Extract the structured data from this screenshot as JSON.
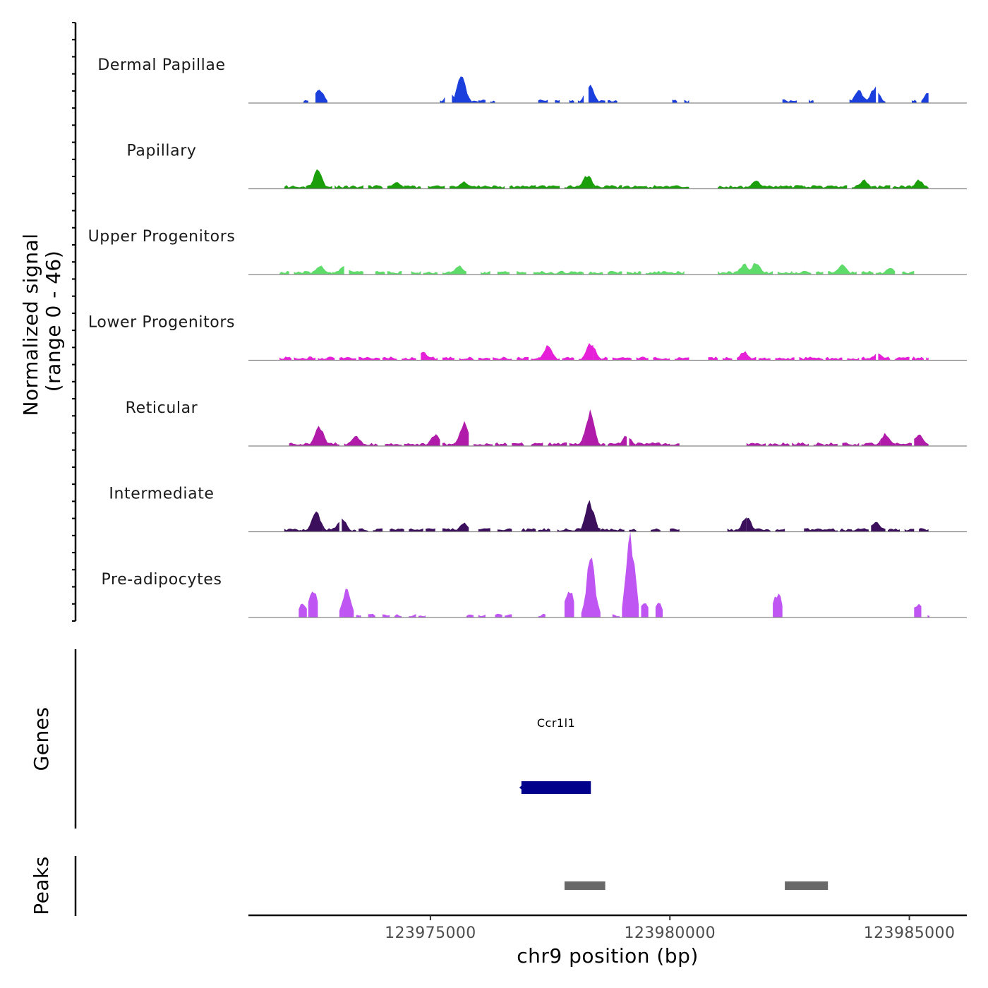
{
  "chart_data": {
    "type": "area",
    "chromosome": "chr9",
    "x_range": [
      123971200,
      123986200
    ],
    "y_title_line1": "Normalized signal",
    "y_title_line2": "(range 0 - 46)",
    "y_range": [
      0,
      46
    ],
    "xlabel": "chr9 position (bp)",
    "x_ticks": [
      123975000,
      123980000,
      123985000
    ],
    "x_tick_labels": [
      "123975000",
      "123980000",
      "123985000"
    ],
    "tracks": [
      {
        "name": "Dermal Papillae",
        "color": "#1a3fdc",
        "segments": [
          [
            123972350,
            123972450
          ],
          [
            123972600,
            123972850
          ],
          [
            123975200,
            123975300
          ],
          [
            123975450,
            123976000
          ],
          [
            123976000,
            123976150
          ],
          [
            123976250,
            123976350
          ],
          [
            123977250,
            123977450
          ],
          [
            123977600,
            123977700
          ],
          [
            123977900,
            123978000
          ],
          [
            123978080,
            123978200
          ],
          [
            123978300,
            123978650
          ],
          [
            123978700,
            123978900
          ],
          [
            123980050,
            123980150
          ],
          [
            123980300,
            123980400
          ],
          [
            123982350,
            123982650
          ],
          [
            123982900,
            123983000
          ],
          [
            123983750,
            123984300
          ],
          [
            123984350,
            123984500
          ],
          [
            123985050,
            123985150
          ],
          [
            123985250,
            123985400
          ]
        ],
        "peaks": [
          [
            123972680,
            8
          ],
          [
            123975650,
            16
          ],
          [
            123975400,
            6
          ],
          [
            123978320,
            11
          ],
          [
            123984280,
            9
          ],
          [
            123983950,
            7
          ],
          [
            123985420,
            7
          ]
        ]
      },
      {
        "name": "Papillary",
        "color": "#1a9f0a",
        "segments": [
          [
            123971950,
            123972400
          ],
          [
            123972400,
            123972950
          ],
          [
            123973000,
            123973600
          ],
          [
            123973700,
            123974000
          ],
          [
            123974100,
            123974500
          ],
          [
            123974450,
            123974800
          ],
          [
            123974950,
            123975300
          ],
          [
            123975400,
            123976050
          ],
          [
            123976050,
            123976550
          ],
          [
            123976650,
            123977200
          ],
          [
            123977150,
            123977700
          ],
          [
            123977800,
            123978400
          ],
          [
            123978400,
            123979000
          ],
          [
            123979000,
            123979500
          ],
          [
            123979500,
            123980400
          ],
          [
            123981000,
            123982300
          ],
          [
            123982300,
            123982800
          ],
          [
            123982800,
            123983700
          ],
          [
            123983800,
            123984200
          ],
          [
            123984200,
            123984600
          ],
          [
            123984650,
            123985050
          ],
          [
            123985050,
            123985400
          ]
        ],
        "peaks": [
          [
            123972650,
            11
          ],
          [
            123978280,
            8
          ],
          [
            123974300,
            4
          ],
          [
            123975700,
            4
          ],
          [
            123981800,
            5
          ],
          [
            123984050,
            5
          ],
          [
            123985200,
            5
          ]
        ]
      },
      {
        "name": "Upper Progenitors",
        "color": "#5fdb6a",
        "segments": [
          [
            123971850,
            123972050
          ],
          [
            123972150,
            123972950
          ],
          [
            123972950,
            123973200
          ],
          [
            123973300,
            123973600
          ],
          [
            123973850,
            123974050
          ],
          [
            123974100,
            123974400
          ],
          [
            123974600,
            123974800
          ],
          [
            123974850,
            123975150
          ],
          [
            123975250,
            123975400
          ],
          [
            123975400,
            123975750
          ],
          [
            123976050,
            123976250
          ],
          [
            123976400,
            123976650
          ],
          [
            123976800,
            123977000
          ],
          [
            123977150,
            123977500
          ],
          [
            123977500,
            123978200
          ],
          [
            123978300,
            123978600
          ],
          [
            123978700,
            123979000
          ],
          [
            123979100,
            123979400
          ],
          [
            123979500,
            123980300
          ],
          [
            123981000,
            123981400
          ],
          [
            123981400,
            123982150
          ],
          [
            123982250,
            123982550
          ],
          [
            123982550,
            123982950
          ],
          [
            123983050,
            123983200
          ],
          [
            123983300,
            123983900
          ],
          [
            123984000,
            123984250
          ],
          [
            123984300,
            123984700
          ],
          [
            123984850,
            123985100
          ]
        ],
        "peaks": [
          [
            123972700,
            5
          ],
          [
            123973200,
            5
          ],
          [
            123981550,
            6
          ],
          [
            123981800,
            7
          ],
          [
            123983600,
            6
          ],
          [
            123975600,
            5
          ],
          [
            123984600,
            4
          ]
        ]
      },
      {
        "name": "Lower Progenitors",
        "color": "#e61fd8",
        "segments": [
          [
            123971850,
            123972100
          ],
          [
            123972150,
            123972600
          ],
          [
            123972650,
            123973000
          ],
          [
            123973100,
            123973450
          ],
          [
            123973500,
            123973950
          ],
          [
            123974000,
            123974300
          ],
          [
            123974400,
            123974700
          ],
          [
            123974800,
            123975150
          ],
          [
            123975250,
            123975500
          ],
          [
            123975600,
            123975900
          ],
          [
            123976000,
            123976250
          ],
          [
            123976300,
            123976700
          ],
          [
            123976800,
            123977050
          ],
          [
            123977100,
            123977250
          ],
          [
            123977250,
            123977700
          ],
          [
            123977750,
            123978000
          ],
          [
            123978100,
            123978400
          ],
          [
            123978400,
            123978700
          ],
          [
            123978800,
            123979200
          ],
          [
            123979300,
            123979550
          ],
          [
            123979650,
            123980000
          ],
          [
            123980100,
            123980400
          ],
          [
            123980800,
            123981000
          ],
          [
            123981100,
            123981300
          ],
          [
            123981400,
            123981800
          ],
          [
            123981850,
            123982100
          ],
          [
            123982200,
            123982600
          ],
          [
            123982700,
            123983200
          ],
          [
            123983250,
            123983600
          ],
          [
            123983700,
            123983950
          ],
          [
            123984000,
            123984300
          ],
          [
            123984350,
            123984600
          ],
          [
            123984700,
            123985000
          ],
          [
            123985050,
            123985300
          ],
          [
            123985350,
            123985400
          ]
        ],
        "peaks": [
          [
            123977450,
            8
          ],
          [
            123978350,
            10
          ],
          [
            123974850,
            5
          ],
          [
            123981550,
            5
          ],
          [
            123984350,
            4
          ]
        ]
      },
      {
        "name": "Reticular",
        "color": "#b01ca9",
        "segments": [
          [
            123972050,
            123972300
          ],
          [
            123972300,
            123972850
          ],
          [
            123972850,
            123973100
          ],
          [
            123973200,
            123973600
          ],
          [
            123973600,
            123973900
          ],
          [
            123974050,
            123974400
          ],
          [
            123974450,
            123974950
          ],
          [
            123974950,
            123975200
          ],
          [
            123975250,
            123975800
          ],
          [
            123975900,
            123976300
          ],
          [
            123976350,
            123976600
          ],
          [
            123976700,
            123976950
          ],
          [
            123977100,
            123977350
          ],
          [
            123977450,
            123977850
          ],
          [
            123977900,
            123978200
          ],
          [
            123978200,
            123978650
          ],
          [
            123978700,
            123979100
          ],
          [
            123979150,
            123979600
          ],
          [
            123979600,
            123980000
          ],
          [
            123980000,
            123980200
          ],
          [
            123981600,
            123982000
          ],
          [
            123982050,
            123982500
          ],
          [
            123982550,
            123982900
          ],
          [
            123983000,
            123983500
          ],
          [
            123983600,
            123983950
          ],
          [
            123984000,
            123984400
          ],
          [
            123984400,
            123984700
          ],
          [
            123984700,
            123985050
          ],
          [
            123985100,
            123985400
          ]
        ],
        "peaks": [
          [
            123972680,
            12
          ],
          [
            123975700,
            13
          ],
          [
            123978330,
            19
          ],
          [
            123973450,
            6
          ],
          [
            123975100,
            7
          ],
          [
            123979100,
            6
          ],
          [
            123984500,
            7
          ],
          [
            123985200,
            7
          ]
        ]
      },
      {
        "name": "Intermediate",
        "color": "#3b0f5c",
        "segments": [
          [
            123971950,
            123972300
          ],
          [
            123972300,
            123972750
          ],
          [
            123972750,
            123973100
          ],
          [
            123973150,
            123973450
          ],
          [
            123973500,
            123973700
          ],
          [
            123973800,
            123974000
          ],
          [
            123974150,
            123974450
          ],
          [
            123974550,
            123974850
          ],
          [
            123974900,
            123975100
          ],
          [
            123975250,
            123975550
          ],
          [
            123975550,
            123975800
          ],
          [
            123976000,
            123976250
          ],
          [
            123976400,
            123976700
          ],
          [
            123976900,
            123977200
          ],
          [
            123977250,
            123977500
          ],
          [
            123977650,
            123978100
          ],
          [
            123978100,
            123978550
          ],
          [
            123978550,
            123979050
          ],
          [
            123979150,
            123979300
          ],
          [
            123979600,
            123979800
          ],
          [
            123980000,
            123980200
          ],
          [
            123981200,
            123981600
          ],
          [
            123981600,
            123982100
          ],
          [
            123982200,
            123982400
          ],
          [
            123982800,
            123983100
          ],
          [
            123983100,
            123983500
          ],
          [
            123983550,
            123983800
          ],
          [
            123983800,
            123984150
          ],
          [
            123984200,
            123984500
          ],
          [
            123984550,
            123984800
          ],
          [
            123984900,
            123985100
          ],
          [
            123985200,
            123985400
          ]
        ],
        "peaks": [
          [
            123972620,
            12
          ],
          [
            123973150,
            8
          ],
          [
            123978330,
            17
          ],
          [
            123981600,
            9
          ],
          [
            123975700,
            5
          ],
          [
            123984300,
            6
          ]
        ]
      },
      {
        "name": "Pre-adipocytes",
        "color": "#bf55f2",
        "segments": [
          [
            123972250,
            123972420
          ],
          [
            123972450,
            123972650
          ],
          [
            123973100,
            123973400
          ],
          [
            123973450,
            123973550
          ],
          [
            123973700,
            123973850
          ],
          [
            123974000,
            123974150
          ],
          [
            123974250,
            123974400
          ],
          [
            123974550,
            123974700
          ],
          [
            123974750,
            123974900
          ],
          [
            123975750,
            123975900
          ],
          [
            123976000,
            123976150
          ],
          [
            123976350,
            123976500
          ],
          [
            123976550,
            123976700
          ],
          [
            123977250,
            123977400
          ],
          [
            123977800,
            123978000
          ],
          [
            123978150,
            123978550
          ],
          [
            123978800,
            123978950
          ],
          [
            123979000,
            123979350
          ],
          [
            123979400,
            123979550
          ],
          [
            123979700,
            123979850
          ],
          [
            123982150,
            123982350
          ],
          [
            123985100,
            123985250
          ],
          [
            123985380,
            123985420
          ]
        ],
        "peaks": [
          [
            123972330,
            8
          ],
          [
            123972550,
            16
          ],
          [
            123973250,
            16
          ],
          [
            123977900,
            16
          ],
          [
            123978350,
            33
          ],
          [
            123979180,
            46
          ],
          [
            123979470,
            8
          ],
          [
            123979770,
            8
          ],
          [
            123982250,
            14
          ],
          [
            123985180,
            8
          ]
        ]
      }
    ],
    "genes": [
      {
        "name": "Ccr1l1",
        "start": 123976900,
        "end": 123978350,
        "strand": "-",
        "color": "#00008b"
      }
    ],
    "genes_label": "Genes",
    "peaks_label": "Peaks",
    "peak_regions": [
      [
        123977800,
        123978650
      ],
      [
        123982400,
        123983300
      ]
    ],
    "peak_color": "#696969"
  }
}
